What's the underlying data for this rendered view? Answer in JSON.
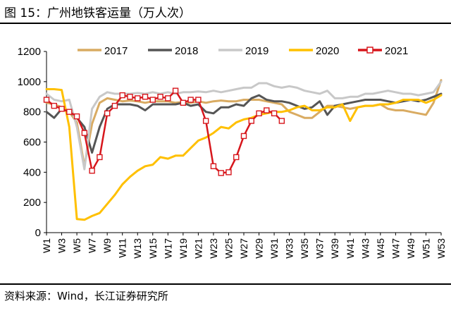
{
  "header": {
    "title": "图 15：广州地铁客运量（万人次）"
  },
  "footer": {
    "source": "资料来源：Wind，长江证券研究所"
  },
  "chart_data": {
    "type": "line",
    "title": "图 15：广州地铁客运量（万人次）",
    "xlabel": "",
    "ylabel": "",
    "ylim": [
      0,
      1200
    ],
    "yticks": [
      0,
      200,
      400,
      600,
      800,
      1000,
      1200
    ],
    "x_tick_labels": [
      "W1",
      "W3",
      "W5",
      "W7",
      "W9",
      "W11",
      "W13",
      "W15",
      "W17",
      "W19",
      "W21",
      "W23",
      "W25",
      "W27",
      "W29",
      "W31",
      "W33",
      "W35",
      "W37",
      "W39",
      "W41",
      "W43",
      "W45",
      "W47",
      "W49",
      "W51",
      "W53"
    ],
    "legend_position": "top",
    "series": [
      {
        "name": "2017",
        "color": "#d9ab62",
        "marker": "none",
        "points": [
          [
            1,
            860
          ],
          [
            2,
            850
          ],
          [
            3,
            830
          ],
          [
            4,
            800
          ],
          [
            5,
            730
          ],
          [
            6,
            440
          ],
          [
            7,
            720
          ],
          [
            8,
            860
          ],
          [
            9,
            890
          ],
          [
            10,
            880
          ],
          [
            11,
            870
          ],
          [
            12,
            875
          ],
          [
            13,
            870
          ],
          [
            14,
            860
          ],
          [
            15,
            870
          ],
          [
            16,
            870
          ],
          [
            17,
            870
          ],
          [
            18,
            860
          ],
          [
            19,
            865
          ],
          [
            20,
            860
          ],
          [
            21,
            870
          ],
          [
            22,
            860
          ],
          [
            23,
            870
          ],
          [
            24,
            875
          ],
          [
            25,
            870
          ],
          [
            26,
            870
          ],
          [
            27,
            880
          ],
          [
            28,
            880
          ],
          [
            29,
            880
          ],
          [
            30,
            870
          ],
          [
            31,
            860
          ],
          [
            32,
            850
          ],
          [
            33,
            800
          ],
          [
            34,
            780
          ],
          [
            35,
            760
          ],
          [
            36,
            760
          ],
          [
            37,
            800
          ],
          [
            38,
            840
          ],
          [
            39,
            840
          ],
          [
            40,
            830
          ],
          [
            41,
            820
          ],
          [
            42,
            830
          ],
          [
            43,
            840
          ],
          [
            44,
            840
          ],
          [
            45,
            850
          ],
          [
            46,
            820
          ],
          [
            47,
            810
          ],
          [
            48,
            810
          ],
          [
            49,
            800
          ],
          [
            50,
            790
          ],
          [
            51,
            780
          ],
          [
            52,
            860
          ],
          [
            53,
            1010
          ]
        ]
      },
      {
        "name": "2018",
        "color": "#555555",
        "marker": "none",
        "points": [
          [
            1,
            800
          ],
          [
            2,
            760
          ],
          [
            3,
            820
          ],
          [
            4,
            800
          ],
          [
            5,
            760
          ],
          [
            6,
            700
          ],
          [
            7,
            530
          ],
          [
            8,
            700
          ],
          [
            9,
            820
          ],
          [
            10,
            850
          ],
          [
            11,
            850
          ],
          [
            12,
            850
          ],
          [
            13,
            840
          ],
          [
            14,
            810
          ],
          [
            15,
            850
          ],
          [
            16,
            850
          ],
          [
            17,
            850
          ],
          [
            18,
            850
          ],
          [
            19,
            860
          ],
          [
            20,
            840
          ],
          [
            21,
            850
          ],
          [
            22,
            800
          ],
          [
            23,
            790
          ],
          [
            24,
            830
          ],
          [
            25,
            830
          ],
          [
            26,
            850
          ],
          [
            27,
            840
          ],
          [
            28,
            890
          ],
          [
            29,
            910
          ],
          [
            30,
            880
          ],
          [
            31,
            870
          ],
          [
            32,
            870
          ],
          [
            33,
            860
          ],
          [
            34,
            840
          ],
          [
            35,
            820
          ],
          [
            36,
            830
          ],
          [
            37,
            870
          ],
          [
            38,
            780
          ],
          [
            39,
            840
          ],
          [
            40,
            850
          ],
          [
            41,
            860
          ],
          [
            42,
            870
          ],
          [
            43,
            880
          ],
          [
            44,
            880
          ],
          [
            45,
            880
          ],
          [
            46,
            870
          ],
          [
            47,
            860
          ],
          [
            48,
            870
          ],
          [
            49,
            880
          ],
          [
            50,
            870
          ],
          [
            51,
            880
          ],
          [
            52,
            900
          ],
          [
            53,
            920
          ]
        ]
      },
      {
        "name": "2019",
        "color": "#c8c8c8",
        "marker": "none",
        "points": [
          [
            1,
            920
          ],
          [
            2,
            880
          ],
          [
            3,
            870
          ],
          [
            4,
            880
          ],
          [
            5,
            700
          ],
          [
            6,
            420
          ],
          [
            7,
            820
          ],
          [
            8,
            900
          ],
          [
            9,
            930
          ],
          [
            10,
            920
          ],
          [
            11,
            920
          ],
          [
            12,
            920
          ],
          [
            13,
            925
          ],
          [
            14,
            920
          ],
          [
            15,
            930
          ],
          [
            16,
            920
          ],
          [
            17,
            930
          ],
          [
            18,
            920
          ],
          [
            19,
            930
          ],
          [
            20,
            930
          ],
          [
            21,
            935
          ],
          [
            22,
            930
          ],
          [
            23,
            940
          ],
          [
            24,
            930
          ],
          [
            25,
            940
          ],
          [
            26,
            950
          ],
          [
            27,
            960
          ],
          [
            28,
            960
          ],
          [
            29,
            990
          ],
          [
            30,
            990
          ],
          [
            31,
            970
          ],
          [
            32,
            960
          ],
          [
            33,
            970
          ],
          [
            34,
            960
          ],
          [
            35,
            940
          ],
          [
            36,
            930
          ],
          [
            37,
            920
          ],
          [
            38,
            940
          ],
          [
            39,
            890
          ],
          [
            40,
            890
          ],
          [
            41,
            900
          ],
          [
            42,
            900
          ],
          [
            43,
            920
          ],
          [
            44,
            920
          ],
          [
            45,
            930
          ],
          [
            46,
            940
          ],
          [
            47,
            930
          ],
          [
            48,
            920
          ],
          [
            49,
            920
          ],
          [
            50,
            910
          ],
          [
            51,
            920
          ],
          [
            52,
            930
          ],
          [
            53,
            1000
          ]
        ]
      },
      {
        "name": "2020",
        "color": "#ffc000",
        "marker": "none",
        "points": [
          [
            1,
            950
          ],
          [
            2,
            950
          ],
          [
            3,
            945
          ],
          [
            4,
            700
          ],
          [
            5,
            90
          ],
          [
            6,
            85
          ],
          [
            7,
            110
          ],
          [
            8,
            130
          ],
          [
            9,
            190
          ],
          [
            10,
            250
          ],
          [
            11,
            320
          ],
          [
            12,
            370
          ],
          [
            13,
            410
          ],
          [
            14,
            440
          ],
          [
            15,
            450
          ],
          [
            16,
            500
          ],
          [
            17,
            490
          ],
          [
            18,
            510
          ],
          [
            19,
            510
          ],
          [
            20,
            560
          ],
          [
            21,
            610
          ],
          [
            22,
            630
          ],
          [
            23,
            660
          ],
          [
            24,
            700
          ],
          [
            25,
            690
          ],
          [
            26,
            730
          ],
          [
            27,
            750
          ],
          [
            28,
            760
          ],
          [
            29,
            780
          ],
          [
            30,
            790
          ],
          [
            31,
            800
          ],
          [
            32,
            800
          ],
          [
            33,
            810
          ],
          [
            34,
            830
          ],
          [
            35,
            840
          ],
          [
            36,
            810
          ],
          [
            37,
            810
          ],
          [
            38,
            830
          ],
          [
            39,
            830
          ],
          [
            40,
            850
          ],
          [
            41,
            740
          ],
          [
            42,
            830
          ],
          [
            43,
            840
          ],
          [
            44,
            840
          ],
          [
            45,
            850
          ],
          [
            46,
            850
          ],
          [
            47,
            860
          ],
          [
            48,
            880
          ],
          [
            49,
            880
          ],
          [
            50,
            880
          ],
          [
            51,
            860
          ],
          [
            52,
            880
          ],
          [
            53,
            910
          ]
        ]
      },
      {
        "name": "2021",
        "color": "#d7161c",
        "marker": "square",
        "points": [
          [
            1,
            880
          ],
          [
            2,
            840
          ],
          [
            3,
            820
          ],
          [
            4,
            800
          ],
          [
            5,
            770
          ],
          [
            6,
            660
          ],
          [
            7,
            410
          ],
          [
            8,
            500
          ],
          [
            9,
            790
          ],
          [
            10,
            840
          ],
          [
            11,
            910
          ],
          [
            12,
            900
          ],
          [
            13,
            890
          ],
          [
            14,
            900
          ],
          [
            15,
            880
          ],
          [
            16,
            900
          ],
          [
            17,
            890
          ],
          [
            18,
            940
          ],
          [
            19,
            860
          ],
          [
            20,
            880
          ],
          [
            21,
            880
          ],
          [
            22,
            740
          ],
          [
            23,
            440
          ],
          [
            24,
            395
          ],
          [
            25,
            400
          ],
          [
            26,
            500
          ],
          [
            27,
            640
          ],
          [
            28,
            740
          ],
          [
            29,
            790
          ],
          [
            30,
            810
          ],
          [
            31,
            790
          ],
          [
            32,
            740
          ]
        ]
      }
    ]
  }
}
